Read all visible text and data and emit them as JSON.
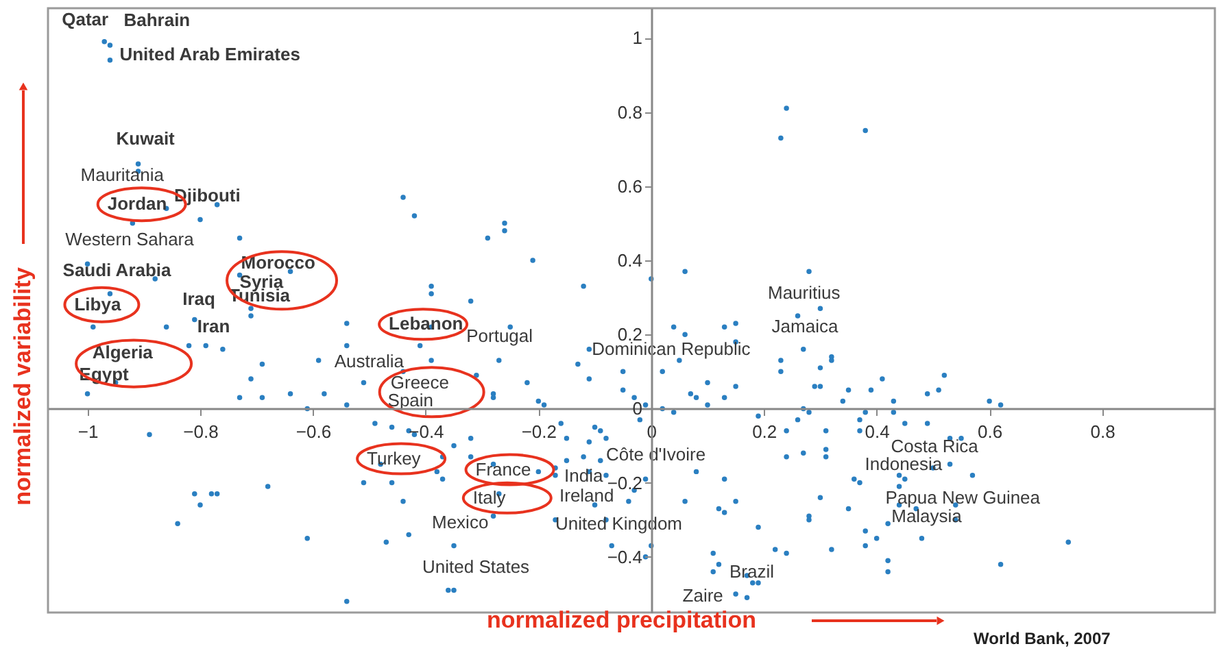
{
  "chart_data": {
    "type": "scatter",
    "xlabel": "normalized precipitation",
    "ylabel": "normalized variability",
    "color": "#2a7fc1",
    "marker": "circle",
    "grid": false,
    "xlim": [
      -1.07,
      1.0
    ],
    "ylim": [
      -0.55,
      1.08
    ],
    "xticks": [
      {
        "value": -1,
        "label": "−1"
      },
      {
        "value": -0.8,
        "label": "−0.8"
      },
      {
        "value": -0.6,
        "label": "−0.6"
      },
      {
        "value": -0.4,
        "label": "−0.4"
      },
      {
        "value": -0.2,
        "label": "−0.2"
      },
      0,
      0.2,
      0.4,
      0.6,
      0.8
    ],
    "yticks": [
      {
        "value": -0.4,
        "label": "−0.4"
      },
      {
        "value": -0.2,
        "label": "−0.2"
      },
      0,
      0.2,
      0.4,
      0.6,
      0.8,
      1
    ],
    "x": [
      -0.97,
      -0.96,
      -0.96,
      -0.91,
      -0.91,
      -0.86,
      -0.8,
      -0.77,
      -0.92,
      -0.73,
      -0.44,
      -0.42,
      -1.0,
      -0.88,
      -0.73,
      -0.64,
      -0.39,
      -0.39,
      -0.96,
      -0.71,
      -0.99,
      -0.86,
      -0.81,
      -0.71,
      -0.82,
      -0.79,
      -0.76,
      -0.69,
      -0.95,
      -1.0,
      -0.71,
      -0.73,
      -0.69,
      -0.64,
      -0.59,
      -0.58,
      -0.61,
      -0.54,
      -0.54,
      -0.54,
      -0.51,
      -0.44,
      -0.39,
      -0.41,
      -0.39,
      -0.89,
      -0.49,
      -0.46,
      -0.43,
      -0.42,
      -0.48,
      -0.51,
      -0.46,
      -0.37,
      -0.38,
      -0.37,
      -0.68,
      -0.81,
      -0.78,
      -0.77,
      -0.8,
      -0.84,
      -0.61,
      -0.47,
      -0.43,
      -0.44,
      -0.54,
      -0.36,
      -0.29,
      -0.26,
      -0.26,
      -0.21,
      -0.32,
      -0.12,
      -0.25,
      -0.27,
      -0.31,
      -0.22,
      -0.28,
      -0.28,
      -0.2,
      -0.19,
      -0.13,
      -0.11,
      -0.11,
      -0.05,
      -0.05,
      -0.03,
      -0.01,
      0.0,
      0.06,
      0.04,
      0.06,
      0.02,
      0.05,
      0.07,
      0.08,
      0.1,
      0.1,
      0.13,
      0.15,
      0.15,
      0.13,
      0.15,
      0.02,
      0.04,
      -0.02,
      0.19,
      0.28,
      0.27,
      0.26,
      0.3,
      0.27,
      -0.16,
      -0.1,
      -0.09,
      -0.08,
      -0.11,
      -0.15,
      -0.35,
      -0.32,
      -0.32,
      -0.28,
      -0.2,
      -0.17,
      -0.17,
      -0.15,
      -0.12,
      -0.11,
      -0.09,
      -0.08,
      -0.03,
      -0.01,
      0.08,
      0.13,
      0.06,
      0.12,
      0.15,
      0.13,
      -0.04,
      -0.1,
      -0.17,
      -0.08,
      -0.07,
      0.0,
      -0.01,
      -0.35,
      -0.35,
      -0.28,
      -0.27,
      0.19,
      0.11,
      0.12,
      0.11,
      0.22,
      0.24,
      0.17,
      0.19,
      0.18,
      0.15,
      0.17,
      0.23,
      0.28,
      0.24,
      0.38,
      0.3,
      0.23,
      0.23,
      0.3,
      0.32,
      0.32,
      0.29,
      0.35,
      0.39,
      0.41,
      0.34,
      0.43,
      0.43,
      0.38,
      0.49,
      0.51,
      0.52,
      0.6,
      0.62,
      0.28,
      0.26,
      0.37,
      0.24,
      0.31,
      0.37,
      0.45,
      0.49,
      0.53,
      0.55,
      0.27,
      0.24,
      0.31,
      0.31,
      0.5,
      0.53,
      0.57,
      0.36,
      0.37,
      0.44,
      0.45,
      0.44,
      0.3,
      0.35,
      0.28,
      0.44,
      0.47,
      0.54,
      0.54,
      0.42,
      0.38,
      0.4,
      0.38,
      0.48,
      0.32,
      0.42,
      0.42,
      0.62,
      0.74
    ],
    "values": [
      0.99,
      0.98,
      0.94,
      0.66,
      0.64,
      0.54,
      0.51,
      0.55,
      0.5,
      0.46,
      0.57,
      0.52,
      0.39,
      0.35,
      0.36,
      0.37,
      0.33,
      0.31,
      0.31,
      0.27,
      0.22,
      0.22,
      0.24,
      0.25,
      0.17,
      0.17,
      0.16,
      0.12,
      0.07,
      0.04,
      0.08,
      0.03,
      0.03,
      0.04,
      0.13,
      0.04,
      0.0,
      0.23,
      0.17,
      0.01,
      0.07,
      0.1,
      0.13,
      0.17,
      0.22,
      -0.07,
      -0.04,
      -0.05,
      -0.06,
      -0.07,
      -0.15,
      -0.2,
      -0.2,
      -0.13,
      -0.17,
      -0.19,
      -0.21,
      -0.23,
      -0.23,
      -0.23,
      -0.26,
      -0.31,
      -0.35,
      -0.36,
      -0.34,
      -0.25,
      -0.52,
      -0.49,
      0.46,
      0.5,
      0.48,
      0.4,
      0.29,
      0.33,
      0.22,
      0.13,
      0.09,
      0.07,
      0.04,
      0.03,
      0.02,
      0.01,
      0.12,
      0.16,
      0.08,
      0.1,
      0.05,
      0.03,
      0.01,
      0.35,
      0.37,
      0.22,
      0.2,
      0.1,
      0.13,
      0.04,
      0.03,
      0.07,
      0.01,
      0.22,
      0.23,
      0.18,
      0.03,
      0.06,
      0.0,
      -0.01,
      -0.03,
      -0.02,
      0.37,
      0.16,
      0.25,
      0.06,
      0.0,
      -0.04,
      -0.05,
      -0.06,
      -0.08,
      -0.09,
      -0.08,
      -0.1,
      -0.08,
      -0.13,
      -0.15,
      -0.17,
      -0.16,
      -0.18,
      -0.14,
      -0.13,
      -0.17,
      -0.14,
      -0.18,
      -0.22,
      -0.19,
      -0.17,
      -0.19,
      -0.25,
      -0.27,
      -0.25,
      -0.28,
      -0.25,
      -0.26,
      -0.3,
      -0.3,
      -0.37,
      -0.37,
      -0.4,
      -0.37,
      -0.49,
      -0.29,
      -0.23,
      -0.32,
      -0.39,
      -0.42,
      -0.44,
      -0.38,
      -0.39,
      -0.45,
      -0.47,
      -0.47,
      -0.5,
      -0.51,
      0.73,
      -0.29,
      0.81,
      0.75,
      0.27,
      0.13,
      0.1,
      0.11,
      0.14,
      0.13,
      0.06,
      0.05,
      0.05,
      0.08,
      0.02,
      0.02,
      -0.01,
      -0.01,
      0.04,
      0.05,
      0.09,
      0.02,
      0.01,
      -0.01,
      -0.03,
      -0.03,
      -0.06,
      -0.06,
      -0.06,
      -0.04,
      -0.04,
      -0.08,
      -0.08,
      -0.12,
      -0.13,
      -0.11,
      -0.13,
      -0.16,
      -0.15,
      -0.18,
      -0.19,
      -0.2,
      -0.18,
      -0.19,
      -0.21,
      -0.24,
      -0.27,
      -0.3,
      -0.26,
      -0.27,
      -0.26,
      -0.3,
      -0.31,
      -0.33,
      -0.35,
      -0.37,
      -0.35,
      -0.38,
      -0.41,
      -0.44,
      -0.42,
      -0.36
    ],
    "annotations": [
      {
        "text": "Qatar",
        "x": -0.97,
        "y": 0.99
      },
      {
        "text": "Bahrain",
        "x": -0.96,
        "y": 0.98
      },
      {
        "text": "United Arab Emirates",
        "x": -0.96,
        "y": 0.94
      },
      {
        "text": "Kuwait",
        "x": -0.91,
        "y": 0.66
      },
      {
        "text": "Jordan",
        "x": -0.86,
        "y": 0.54
      },
      {
        "text": "Djibouti",
        "x": -0.8,
        "y": 0.51
      },
      {
        "text": "Saudi Arabia",
        "x": -1.0,
        "y": 0.39
      },
      {
        "text": "Libya",
        "x": -0.96,
        "y": 0.31
      },
      {
        "text": "Iraq",
        "x": -0.88,
        "y": 0.35
      },
      {
        "text": "Iran",
        "x": -0.81,
        "y": 0.24
      },
      {
        "text": "Morocco",
        "x": -0.64,
        "y": 0.37
      },
      {
        "text": "Syria",
        "x": -0.73,
        "y": 0.36
      },
      {
        "text": "Tunisia",
        "x": -0.71,
        "y": 0.27
      },
      {
        "text": "Algeria",
        "x": -0.95,
        "y": 0.07
      },
      {
        "text": "Egypt",
        "x": -1.0,
        "y": 0.04
      },
      {
        "text": "Lebanon",
        "x": -0.39,
        "y": 0.22
      },
      {
        "text": "Mauritania",
        "x": -0.91,
        "y": 0.64
      },
      {
        "text": "Western Sahara",
        "x": -0.92,
        "y": 0.5
      },
      {
        "text": "Portugal",
        "x": -0.25,
        "y": 0.22
      },
      {
        "text": "Australia",
        "x": -0.54,
        "y": 0.17
      },
      {
        "text": "Greece",
        "x": -0.54,
        "y": 0.01
      },
      {
        "text": "Spain",
        "x": -0.46,
        "y": -0.05
      },
      {
        "text": "Turkey",
        "x": -0.48,
        "y": -0.15
      },
      {
        "text": "France",
        "x": -0.28,
        "y": -0.15
      },
      {
        "text": "Italy",
        "x": -0.27,
        "y": -0.23
      },
      {
        "text": "Mexico",
        "x": -0.35,
        "y": -0.37
      },
      {
        "text": "United States",
        "x": -0.35,
        "y": -0.49
      },
      {
        "text": "India",
        "x": -0.12,
        "y": -0.13
      },
      {
        "text": "Ireland",
        "x": -0.17,
        "y": -0.18
      },
      {
        "text": "United Kingdom",
        "x": -0.17,
        "y": -0.3
      },
      {
        "text": "Côte d'Ivoire",
        "x": -0.08,
        "y": -0.08
      },
      {
        "text": "Dominican Republic",
        "x": -0.11,
        "y": 0.16
      },
      {
        "text": "Mauritius",
        "x": 0.28,
        "y": 0.37
      },
      {
        "text": "Jamaica",
        "x": 0.26,
        "y": 0.25
      },
      {
        "text": "Costa Rica",
        "x": 0.53,
        "y": -0.08
      },
      {
        "text": "Indonesia",
        "x": 0.44,
        "y": -0.18
      },
      {
        "text": "Papua New Guinea",
        "x": 0.44,
        "y": -0.26
      },
      {
        "text": "Malaysia",
        "x": 0.47,
        "y": -0.27
      },
      {
        "text": "Brazil",
        "x": 0.19,
        "y": -0.47
      },
      {
        "text": "Zaire",
        "x": 0.17,
        "y": -0.51
      },
      "World Bank, 2007"
    ]
  }
}
